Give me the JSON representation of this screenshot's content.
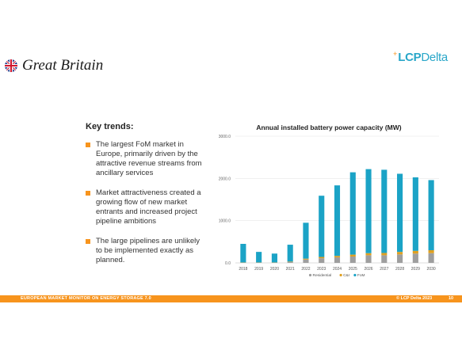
{
  "header": {
    "country": "Great Britain",
    "logo": {
      "text_bold": "LCP",
      "text_thin": "Delta",
      "spark": "+"
    },
    "flag_icon": "uk-flag-icon"
  },
  "trends": {
    "title": "Key trends:",
    "items": [
      "The largest FoM market in Europe, primarily driven by the attractive revenue streams from ancillary services",
      "Market attractiveness created a growing flow of new market entrants and increased project pipeline ambitions",
      "The large pipelines are unlikely to be implemented exactly as planned."
    ]
  },
  "footer": {
    "left": "EUROPEAN MARKET MONITOR ON ENERGY STORAGE 7.0",
    "right": "© LCP Delta 2023",
    "page": "10"
  },
  "colors": {
    "accent": "#f7941d",
    "residential": "#9e9e9e",
    "ci": "#e0a020",
    "fom": "#1ba3c6"
  },
  "chart_data": {
    "type": "bar",
    "stacked": true,
    "title": "Annual installed battery power capacity (MW)",
    "xlabel": "",
    "ylabel": "",
    "categories": [
      "2018",
      "2019",
      "2020",
      "2021",
      "2022",
      "2023",
      "2024",
      "2025",
      "2026",
      "2027",
      "2028",
      "2029",
      "2030"
    ],
    "ylim": [
      0,
      3000
    ],
    "yticks": [
      0,
      1000,
      2000,
      3000
    ],
    "ytick_labels": [
      "0.0",
      "1000.0",
      "2000.0",
      "3000.0"
    ],
    "grid": true,
    "legend": "bottom",
    "series": [
      {
        "name": "Residential",
        "color": "#9e9e9e",
        "values": [
          5,
          5,
          5,
          20,
          80,
          110,
          130,
          150,
          180,
          180,
          200,
          220,
          230
        ]
      },
      {
        "name": "C&I",
        "color": "#e0a020",
        "values": [
          5,
          5,
          5,
          10,
          20,
          30,
          35,
          45,
          50,
          55,
          60,
          65,
          70
        ]
      },
      {
        "name": "FoM",
        "color": "#1ba3c6",
        "values": [
          440,
          250,
          210,
          400,
          850,
          1450,
          1670,
          1950,
          1990,
          1970,
          1850,
          1740,
          1660
        ]
      }
    ]
  }
}
